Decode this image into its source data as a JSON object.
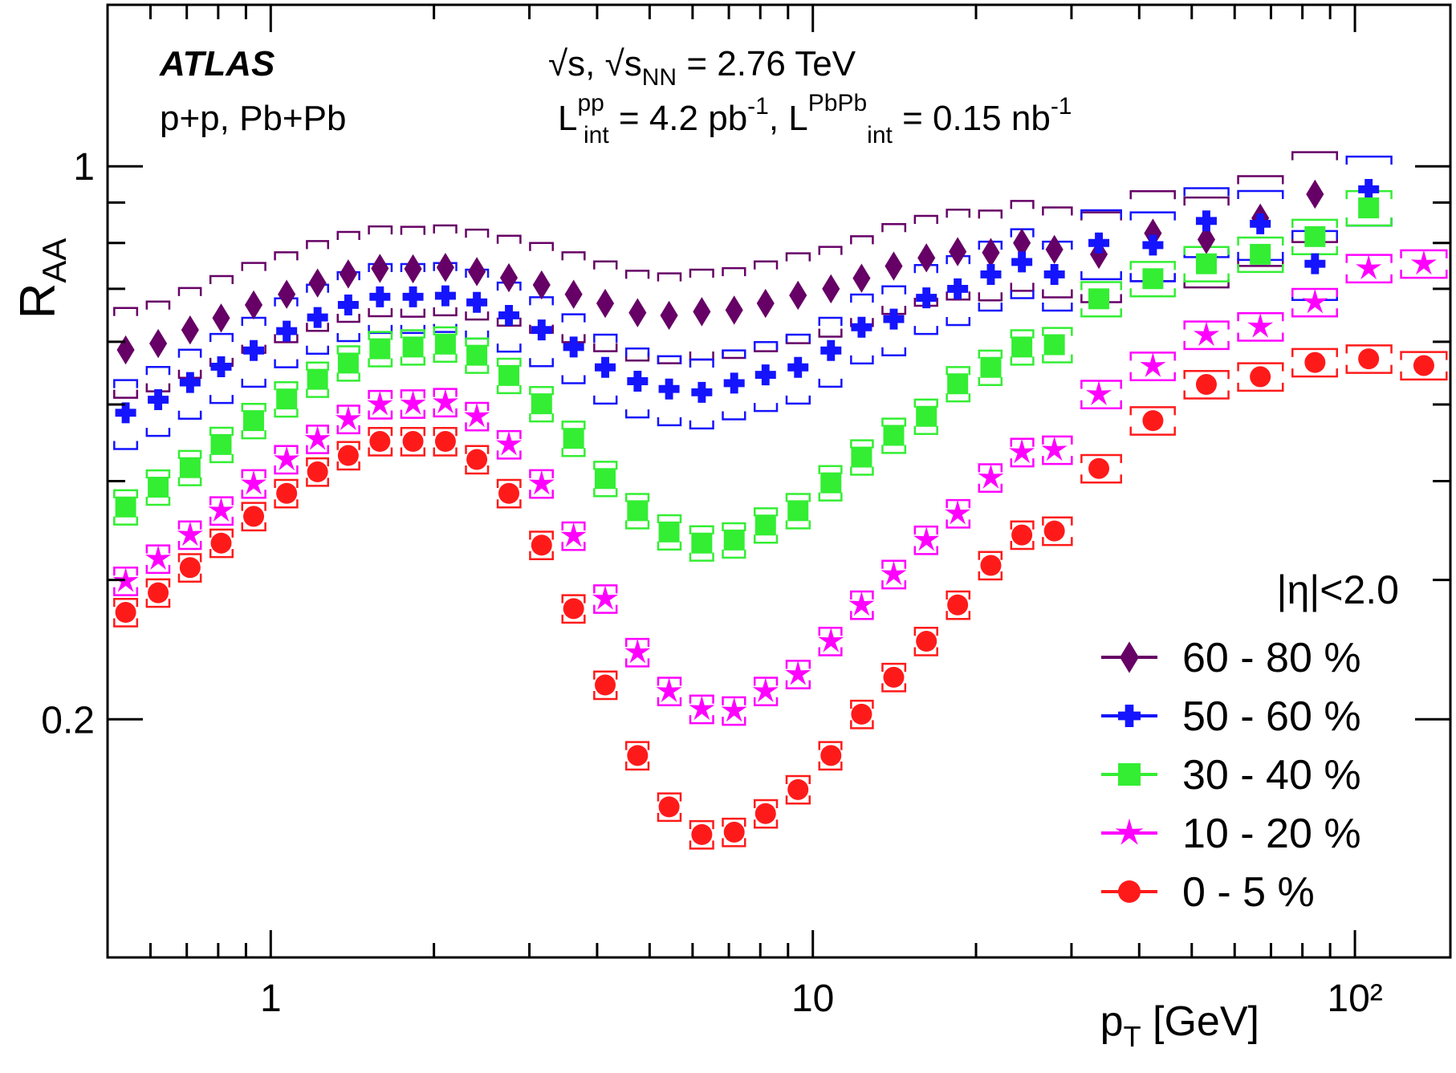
{
  "chart_data": {
    "type": "scatter",
    "ylabel": {
      "text": "R",
      "sub": "AA"
    },
    "xlabel": {
      "text": "p",
      "sub": "T",
      "rest": " [GeV]"
    },
    "annotations": {
      "experiment": "ATLAS",
      "systems": "p+p, Pb+Pb",
      "energy": [
        "√s, √s",
        "NN",
        " = 2.76 TeV"
      ],
      "lumi": [
        "L",
        "pp",
        "int",
        " = 4.2 pb",
        "-1",
        ", L",
        "PbPb",
        "int",
        " = 0.15 nb",
        "-1"
      ]
    },
    "legend_title": "|η|<2.0",
    "legend": "lower right",
    "log_x": true,
    "log_y": true,
    "xlim": [
      0.5,
      150
    ],
    "ylim": [
      0.1,
      1.6
    ],
    "xticks": [
      1,
      10,
      {
        "value": 100,
        "label": "10²"
      }
    ],
    "xminor": [
      0.6,
      0.7,
      0.8,
      0.9,
      2,
      3,
      4,
      5,
      6,
      7,
      8,
      9,
      20,
      30,
      40,
      50,
      60,
      70,
      80,
      90
    ],
    "yticks": [
      0.2,
      1
    ],
    "yminor": [
      0.3,
      0.4,
      0.5,
      0.6,
      0.7,
      0.8,
      0.9
    ],
    "x": [
      0.54,
      0.62,
      0.71,
      0.81,
      0.93,
      1.07,
      1.22,
      1.39,
      1.59,
      1.83,
      2.1,
      2.4,
      2.75,
      3.16,
      3.62,
      4.14,
      4.75,
      5.43,
      6.24,
      7.16,
      8.18,
      9.39,
      10.8,
      12.3,
      14.1,
      16.2,
      18.5,
      21.3,
      24.3,
      27.9,
      33.7,
      42.4,
      53.2,
      66.9,
      84.4,
      106,
      134
    ],
    "series": [
      {
        "name": "60 - 80 %",
        "color": "#660066",
        "marker": "diamond",
        "sys_frac": 0.13,
        "values": [
          0.586,
          0.597,
          0.621,
          0.643,
          0.668,
          0.689,
          0.712,
          0.731,
          0.743,
          0.742,
          0.745,
          0.736,
          0.723,
          0.708,
          0.689,
          0.671,
          0.653,
          0.648,
          0.655,
          0.658,
          0.671,
          0.687,
          0.7,
          0.722,
          0.748,
          0.766,
          0.78,
          0.778,
          0.8,
          0.785,
          0.774,
          0.823,
          0.808,
          0.86,
          0.922,
          null,
          null
        ]
      },
      {
        "name": "50 - 60 %",
        "color": "#1414ff",
        "marker": "cross",
        "sys_frac": 0.1,
        "values": [
          0.488,
          0.507,
          0.533,
          0.558,
          0.585,
          0.619,
          0.644,
          0.668,
          0.684,
          0.684,
          0.686,
          0.673,
          0.648,
          0.621,
          0.591,
          0.557,
          0.535,
          0.523,
          0.518,
          0.532,
          0.545,
          0.557,
          0.585,
          0.626,
          0.641,
          0.682,
          0.7,
          0.73,
          0.757,
          0.73,
          0.8,
          0.795,
          0.853,
          0.846,
          0.753,
          0.935,
          null
        ]
      },
      {
        "name": "30 - 40 %",
        "color": "#33ee33",
        "marker": "square",
        "sys_frac": 0.05,
        "values": [
          0.371,
          0.393,
          0.416,
          0.445,
          0.477,
          0.508,
          0.538,
          0.564,
          0.588,
          0.591,
          0.596,
          0.577,
          0.544,
          0.501,
          0.453,
          0.403,
          0.367,
          0.345,
          0.334,
          0.337,
          0.352,
          0.367,
          0.398,
          0.429,
          0.457,
          0.483,
          0.531,
          0.557,
          0.591,
          0.595,
          0.68,
          0.721,
          0.753,
          0.774,
          0.815,
          0.886,
          null
        ]
      },
      {
        "name": "10 - 20 %",
        "color": "#ff00ff",
        "marker": "star",
        "sys_frac": 0.04,
        "values": [
          0.299,
          0.319,
          0.342,
          0.367,
          0.397,
          0.426,
          0.452,
          0.479,
          0.5,
          0.501,
          0.503,
          0.483,
          0.445,
          0.397,
          0.341,
          0.284,
          0.243,
          0.217,
          0.206,
          0.205,
          0.217,
          0.228,
          0.251,
          0.279,
          0.305,
          0.337,
          0.364,
          0.404,
          0.435,
          0.438,
          0.515,
          0.559,
          0.612,
          0.627,
          0.673,
          0.743,
          0.753
        ]
      },
      {
        "name": "0 - 5 %",
        "color": "#ff1a1a",
        "marker": "circle",
        "sys_frac": 0.04,
        "values": [
          0.273,
          0.289,
          0.311,
          0.334,
          0.361,
          0.386,
          0.411,
          0.431,
          0.449,
          0.449,
          0.449,
          0.426,
          0.386,
          0.332,
          0.276,
          0.221,
          0.18,
          0.155,
          0.143,
          0.144,
          0.152,
          0.163,
          0.18,
          0.203,
          0.226,
          0.251,
          0.279,
          0.313,
          0.342,
          0.346,
          0.415,
          0.477,
          0.53,
          0.542,
          0.565,
          0.571,
          0.56
        ]
      }
    ]
  }
}
